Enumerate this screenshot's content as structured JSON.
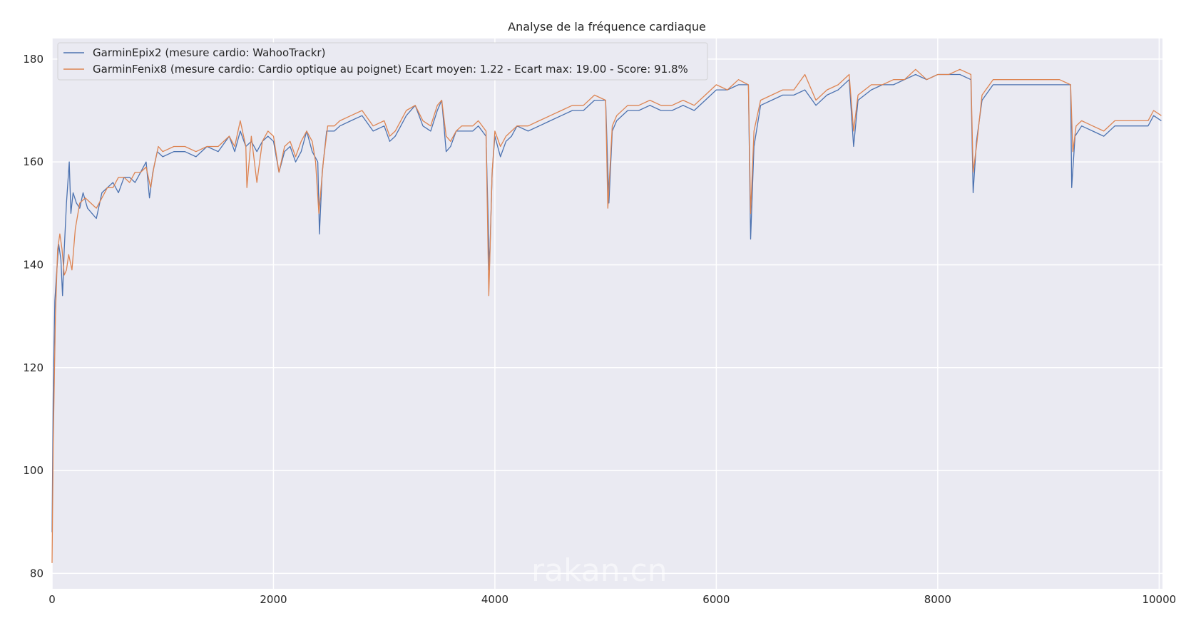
{
  "chart_data": {
    "type": "line",
    "title": "Analyse de la fréquence cardiaque",
    "xlabel": "",
    "ylabel": "",
    "xlim": [
      0,
      10030
    ],
    "ylim": [
      77,
      184
    ],
    "xticks": [
      0,
      2000,
      4000,
      6000,
      8000,
      10000
    ],
    "yticks": [
      80,
      100,
      120,
      140,
      160,
      180
    ],
    "grid": true,
    "legend_position": "top-left",
    "watermark": "rakan.cn",
    "series": [
      {
        "name": "GarminEpix2 (mesure cardio: WahooTrackr)",
        "color": "#4c72b0",
        "points": [
          [
            0,
            88
          ],
          [
            10,
            115
          ],
          [
            25,
            133
          ],
          [
            40,
            138
          ],
          [
            60,
            144
          ],
          [
            80,
            141
          ],
          [
            95,
            134
          ],
          [
            110,
            143
          ],
          [
            130,
            152
          ],
          [
            155,
            160
          ],
          [
            170,
            150
          ],
          [
            190,
            154
          ],
          [
            220,
            152
          ],
          [
            250,
            151
          ],
          [
            280,
            154
          ],
          [
            320,
            151
          ],
          [
            360,
            150
          ],
          [
            400,
            149
          ],
          [
            450,
            154
          ],
          [
            500,
            155
          ],
          [
            550,
            156
          ],
          [
            600,
            154
          ],
          [
            650,
            157
          ],
          [
            700,
            157
          ],
          [
            750,
            156
          ],
          [
            800,
            158
          ],
          [
            850,
            160
          ],
          [
            880,
            153
          ],
          [
            910,
            158
          ],
          [
            950,
            162
          ],
          [
            1000,
            161
          ],
          [
            1100,
            162
          ],
          [
            1200,
            162
          ],
          [
            1300,
            161
          ],
          [
            1400,
            163
          ],
          [
            1500,
            162
          ],
          [
            1600,
            165
          ],
          [
            1650,
            162
          ],
          [
            1700,
            166
          ],
          [
            1750,
            163
          ],
          [
            1800,
            164
          ],
          [
            1850,
            162
          ],
          [
            1900,
            164
          ],
          [
            1950,
            165
          ],
          [
            2000,
            164
          ],
          [
            2050,
            158
          ],
          [
            2100,
            162
          ],
          [
            2150,
            163
          ],
          [
            2200,
            160
          ],
          [
            2250,
            162
          ],
          [
            2300,
            166
          ],
          [
            2350,
            162
          ],
          [
            2400,
            160
          ],
          [
            2415,
            146
          ],
          [
            2440,
            158
          ],
          [
            2480,
            166
          ],
          [
            2550,
            166
          ],
          [
            2600,
            167
          ],
          [
            2700,
            168
          ],
          [
            2800,
            169
          ],
          [
            2900,
            166
          ],
          [
            3000,
            167
          ],
          [
            3050,
            164
          ],
          [
            3100,
            165
          ],
          [
            3150,
            167
          ],
          [
            3200,
            169
          ],
          [
            3280,
            171
          ],
          [
            3350,
            167
          ],
          [
            3420,
            166
          ],
          [
            3480,
            170
          ],
          [
            3520,
            172
          ],
          [
            3560,
            162
          ],
          [
            3600,
            163
          ],
          [
            3650,
            166
          ],
          [
            3700,
            166
          ],
          [
            3800,
            166
          ],
          [
            3850,
            167
          ],
          [
            3920,
            165
          ],
          [
            3950,
            139
          ],
          [
            3975,
            158
          ],
          [
            4000,
            165
          ],
          [
            4050,
            161
          ],
          [
            4100,
            164
          ],
          [
            4150,
            165
          ],
          [
            4200,
            167
          ],
          [
            4300,
            166
          ],
          [
            4400,
            167
          ],
          [
            4500,
            168
          ],
          [
            4600,
            169
          ],
          [
            4700,
            170
          ],
          [
            4800,
            170
          ],
          [
            4900,
            172
          ],
          [
            5000,
            172
          ],
          [
            5030,
            152
          ],
          [
            5060,
            166
          ],
          [
            5100,
            168
          ],
          [
            5200,
            170
          ],
          [
            5300,
            170
          ],
          [
            5400,
            171
          ],
          [
            5500,
            170
          ],
          [
            5600,
            170
          ],
          [
            5700,
            171
          ],
          [
            5800,
            170
          ],
          [
            5900,
            172
          ],
          [
            6000,
            174
          ],
          [
            6100,
            174
          ],
          [
            6200,
            175
          ],
          [
            6290,
            175
          ],
          [
            6310,
            145
          ],
          [
            6340,
            163
          ],
          [
            6400,
            171
          ],
          [
            6500,
            172
          ],
          [
            6600,
            173
          ],
          [
            6700,
            173
          ],
          [
            6800,
            174
          ],
          [
            6900,
            171
          ],
          [
            7000,
            173
          ],
          [
            7100,
            174
          ],
          [
            7200,
            176
          ],
          [
            7240,
            163
          ],
          [
            7280,
            172
          ],
          [
            7400,
            174
          ],
          [
            7500,
            175
          ],
          [
            7600,
            175
          ],
          [
            7700,
            176
          ],
          [
            7800,
            177
          ],
          [
            7900,
            176
          ],
          [
            8000,
            177
          ],
          [
            8100,
            177
          ],
          [
            8200,
            177
          ],
          [
            8300,
            176
          ],
          [
            8320,
            154
          ],
          [
            8350,
            164
          ],
          [
            8400,
            172
          ],
          [
            8500,
            175
          ],
          [
            8600,
            175
          ],
          [
            8700,
            175
          ],
          [
            8800,
            175
          ],
          [
            8900,
            175
          ],
          [
            9000,
            175
          ],
          [
            9100,
            175
          ],
          [
            9200,
            175
          ],
          [
            9210,
            155
          ],
          [
            9240,
            165
          ],
          [
            9300,
            167
          ],
          [
            9400,
            166
          ],
          [
            9500,
            165
          ],
          [
            9600,
            167
          ],
          [
            9700,
            167
          ],
          [
            9800,
            167
          ],
          [
            9900,
            167
          ],
          [
            9950,
            169
          ],
          [
            10020,
            168
          ]
        ]
      },
      {
        "name": "GarminFenix8 (mesure cardio: Cardio optique au poignet) Ecart moyen: 1.22 - Ecart max: 19.00 - Score: 91.8%",
        "color": "#dd8452",
        "points": [
          [
            0,
            82
          ],
          [
            10,
            105
          ],
          [
            30,
            130
          ],
          [
            50,
            143
          ],
          [
            70,
            146
          ],
          [
            90,
            143
          ],
          [
            110,
            138
          ],
          [
            130,
            139
          ],
          [
            150,
            142
          ],
          [
            180,
            139
          ],
          [
            210,
            147
          ],
          [
            250,
            152
          ],
          [
            300,
            153
          ],
          [
            350,
            152
          ],
          [
            400,
            151
          ],
          [
            450,
            153
          ],
          [
            500,
            155
          ],
          [
            550,
            155
          ],
          [
            600,
            157
          ],
          [
            650,
            157
          ],
          [
            700,
            156
          ],
          [
            750,
            158
          ],
          [
            800,
            158
          ],
          [
            850,
            159
          ],
          [
            890,
            155
          ],
          [
            920,
            159
          ],
          [
            960,
            163
          ],
          [
            1000,
            162
          ],
          [
            1100,
            163
          ],
          [
            1200,
            163
          ],
          [
            1300,
            162
          ],
          [
            1400,
            163
          ],
          [
            1500,
            163
          ],
          [
            1600,
            165
          ],
          [
            1650,
            163
          ],
          [
            1700,
            168
          ],
          [
            1750,
            163
          ],
          [
            1760,
            155
          ],
          [
            1800,
            165
          ],
          [
            1850,
            156
          ],
          [
            1900,
            164
          ],
          [
            1950,
            166
          ],
          [
            2000,
            165
          ],
          [
            2050,
            158
          ],
          [
            2100,
            163
          ],
          [
            2150,
            164
          ],
          [
            2200,
            161
          ],
          [
            2250,
            164
          ],
          [
            2300,
            166
          ],
          [
            2350,
            164
          ],
          [
            2380,
            160
          ],
          [
            2410,
            150
          ],
          [
            2450,
            160
          ],
          [
            2490,
            167
          ],
          [
            2550,
            167
          ],
          [
            2600,
            168
          ],
          [
            2700,
            169
          ],
          [
            2800,
            170
          ],
          [
            2900,
            167
          ],
          [
            3000,
            168
          ],
          [
            3050,
            165
          ],
          [
            3100,
            166
          ],
          [
            3150,
            168
          ],
          [
            3200,
            170
          ],
          [
            3280,
            171
          ],
          [
            3350,
            168
          ],
          [
            3420,
            167
          ],
          [
            3480,
            171
          ],
          [
            3520,
            172
          ],
          [
            3560,
            165
          ],
          [
            3600,
            164
          ],
          [
            3650,
            166
          ],
          [
            3700,
            167
          ],
          [
            3800,
            167
          ],
          [
            3850,
            168
          ],
          [
            3920,
            166
          ],
          [
            3945,
            134
          ],
          [
            3975,
            158
          ],
          [
            4000,
            166
          ],
          [
            4050,
            163
          ],
          [
            4100,
            165
          ],
          [
            4150,
            166
          ],
          [
            4200,
            167
          ],
          [
            4300,
            167
          ],
          [
            4400,
            168
          ],
          [
            4500,
            169
          ],
          [
            4600,
            170
          ],
          [
            4700,
            171
          ],
          [
            4800,
            171
          ],
          [
            4900,
            173
          ],
          [
            5000,
            172
          ],
          [
            5020,
            151
          ],
          [
            5060,
            167
          ],
          [
            5100,
            169
          ],
          [
            5200,
            171
          ],
          [
            5300,
            171
          ],
          [
            5400,
            172
          ],
          [
            5500,
            171
          ],
          [
            5600,
            171
          ],
          [
            5700,
            172
          ],
          [
            5800,
            171
          ],
          [
            5900,
            173
          ],
          [
            6000,
            175
          ],
          [
            6100,
            174
          ],
          [
            6200,
            176
          ],
          [
            6290,
            175
          ],
          [
            6310,
            150
          ],
          [
            6340,
            166
          ],
          [
            6400,
            172
          ],
          [
            6500,
            173
          ],
          [
            6600,
            174
          ],
          [
            6700,
            174
          ],
          [
            6800,
            177
          ],
          [
            6900,
            172
          ],
          [
            7000,
            174
          ],
          [
            7100,
            175
          ],
          [
            7200,
            177
          ],
          [
            7240,
            166
          ],
          [
            7280,
            173
          ],
          [
            7400,
            175
          ],
          [
            7500,
            175
          ],
          [
            7600,
            176
          ],
          [
            7700,
            176
          ],
          [
            7800,
            178
          ],
          [
            7900,
            176
          ],
          [
            8000,
            177
          ],
          [
            8100,
            177
          ],
          [
            8200,
            178
          ],
          [
            8300,
            177
          ],
          [
            8320,
            158
          ],
          [
            8350,
            163
          ],
          [
            8400,
            173
          ],
          [
            8500,
            176
          ],
          [
            8600,
            176
          ],
          [
            8700,
            176
          ],
          [
            8800,
            176
          ],
          [
            8900,
            176
          ],
          [
            9000,
            176
          ],
          [
            9100,
            176
          ],
          [
            9200,
            175
          ],
          [
            9220,
            162
          ],
          [
            9250,
            167
          ],
          [
            9300,
            168
          ],
          [
            9400,
            167
          ],
          [
            9500,
            166
          ],
          [
            9600,
            168
          ],
          [
            9700,
            168
          ],
          [
            9800,
            168
          ],
          [
            9900,
            168
          ],
          [
            9950,
            170
          ],
          [
            10020,
            169
          ]
        ]
      }
    ]
  }
}
